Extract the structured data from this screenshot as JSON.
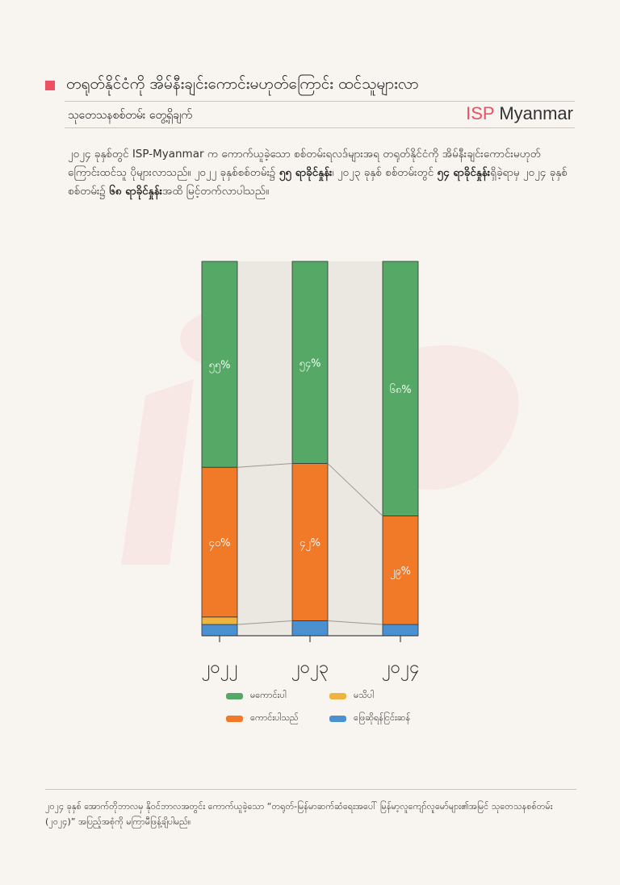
{
  "header": {
    "title": "တရုတ်နိုင်ငံကို အိမ်နီးချင်းကောင်းမဟုတ်ကြောင်း ထင်သူများလာ",
    "subtitle": "သုတေသနစစ်တမ်း တွေ့ရှိချက်",
    "brand_isp": "ISP",
    "brand_name": "Myanmar"
  },
  "description": {
    "s1": "၂၀၂၄ ခုနှစ်တွင် ISP-Myanmar က ကောက်ယူခဲ့သော စစ်တမ်းရလဒ်များအရ တရုတ်နိုင်ငံကို အိမ်နီးချင်းကောင်းမဟုတ်ကြောင်းထင်သူ ပိုများလာသည်။ ၂၀၂၂ ခုနှစ်စစ်တမ်း၌ ",
    "b1": "၅၅ ရာခိုင်နှုန်း",
    "s2": "၊ ၂၀၂၃ ခုနှစ် စစ်တမ်းတွင် ",
    "b2": "၅၄ ရာခိုင်နှုန်း",
    "s3": "ရှိခဲ့ရာမှ ၂၀၂၄ ခုနှစ် စစ်တမ်း၌ ",
    "b3": "၆၈ ရာခိုင်နှုန်း",
    "s4": "အထိ မြင့်တက်လာပါသည်။"
  },
  "chart_data": {
    "type": "bar",
    "stacked": true,
    "categories": [
      "၂၀၂၂",
      "၂၀၂၃",
      "၂၀၂၄"
    ],
    "series": [
      {
        "name": "မကောင်းပါ",
        "color": "#56a867",
        "values": [
          55,
          54,
          68
        ],
        "labels": [
          "၅၅%",
          "၅၄%",
          "၆၈%"
        ]
      },
      {
        "name": "ကောင်းပါသည်",
        "color": "#f07a28",
        "values": [
          40,
          42,
          29
        ],
        "labels": [
          "၄၀%",
          "၄၂%",
          "၂၉%"
        ]
      },
      {
        "name": "မသိပါ",
        "color": "#f1b33f",
        "values": [
          2,
          0,
          0
        ],
        "labels": [
          "",
          "",
          ""
        ]
      },
      {
        "name": "ဖြေဆိုရန်ငြင်းဆန်",
        "color": "#4b91d2",
        "values": [
          3,
          4,
          3
        ],
        "labels": [
          "",
          "",
          ""
        ]
      }
    ],
    "ylim": [
      0,
      100
    ],
    "grid": false,
    "legend": "bottom"
  },
  "legend": {
    "order": [
      0,
      2,
      1,
      3
    ]
  },
  "footnote": "၂၀၂၄ ခုနှစ် အောက်တိုဘာလမှ နိုဝင်ဘာလအတွင်း ကောက်ယူခဲ့သော “တရုတ်-မြန်မာဆက်ဆံရေးအပေါ် မြန်မာ့လူကျော်လူမော်များ၏အမြင် သုတေသနစစ်တမ်း (၂၀၂၄)” အပြည့်အစုံကို မကြာမီဖြန့်ချိပါမည်။"
}
